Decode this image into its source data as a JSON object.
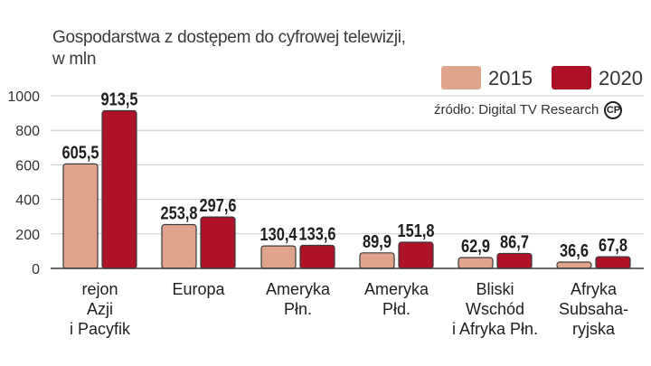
{
  "chart_data": {
    "type": "bar",
    "title": "Gospodarstwa z dostępem do cyfrowej telewizji,",
    "subtitle": "w mln",
    "source": "źródło: Digital TV Research",
    "source_badge": "CP",
    "ylim": [
      0,
      1000
    ],
    "yticks": [
      "0",
      "200",
      "400",
      "600",
      "800",
      "1000"
    ],
    "ytick_values": [
      0,
      200,
      400,
      600,
      800,
      1000
    ],
    "categories": [
      [
        "rejon",
        "Azji",
        "i Pacyfik"
      ],
      [
        "Europa"
      ],
      [
        "Ameryka",
        "Płn."
      ],
      [
        "Ameryka",
        "Płd."
      ],
      [
        "Bliski",
        "Wschód",
        "i Afryka Płn."
      ],
      [
        "Afryka",
        "Subsaha-",
        "ryjska"
      ]
    ],
    "series": [
      {
        "name": "2015",
        "color": "#e0a48c",
        "values": [
          605.5,
          253.8,
          130.4,
          89.9,
          62.9,
          36.6
        ],
        "labels": [
          "605,5",
          "253,8",
          "130,4",
          "89,9",
          "62,9",
          "36,6"
        ]
      },
      {
        "name": "2020",
        "color": "#ad1228",
        "values": [
          913.5,
          297.6,
          133.6,
          151.8,
          86.7,
          67.8
        ],
        "labels": [
          "913,5",
          "297,6",
          "133,6",
          "151,8",
          "86,7",
          "67,8"
        ]
      }
    ]
  }
}
